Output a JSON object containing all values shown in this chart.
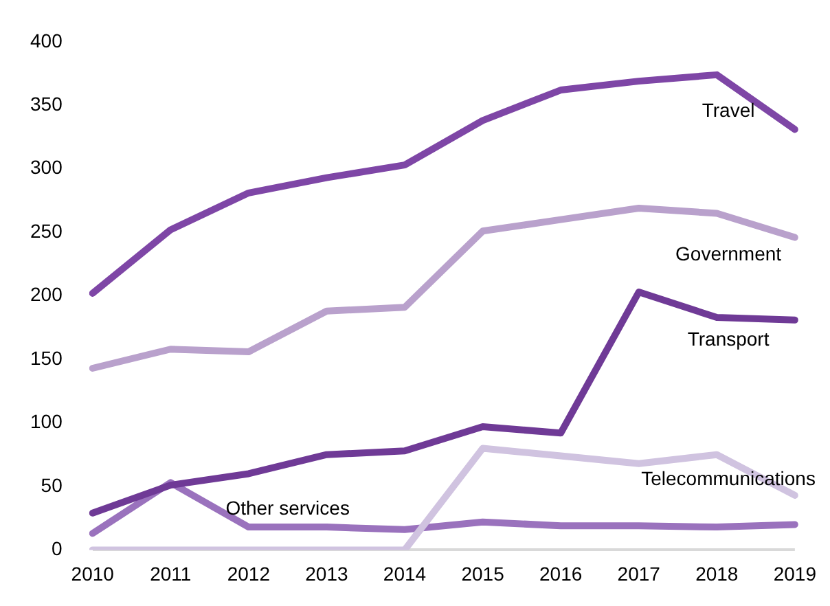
{
  "chart_data": {
    "type": "line",
    "categories": [
      "2010",
      "2011",
      "2012",
      "2013",
      "2014",
      "2015",
      "2016",
      "2017",
      "2018",
      "2019"
    ],
    "series": [
      {
        "name": "Travel",
        "color": "#7e46a6",
        "values": [
          202,
          252,
          281,
          293,
          303,
          338,
          362,
          369,
          374,
          331
        ]
      },
      {
        "name": "Government",
        "color": "#b9a1cc",
        "values": [
          143,
          158,
          156,
          188,
          191,
          251,
          260,
          269,
          265,
          246
        ]
      },
      {
        "name": "Transport",
        "color": "#6f3a96",
        "values": [
          29,
          51,
          60,
          75,
          78,
          97,
          92,
          203,
          183,
          181
        ]
      },
      {
        "name": "Telecommunications",
        "color": "#d0c3e0",
        "values": [
          0,
          0,
          0,
          0,
          0,
          80,
          74,
          68,
          75,
          43
        ]
      },
      {
        "name": "Other services",
        "color": "#9a72bd",
        "values": [
          13,
          53,
          18,
          18,
          16,
          22,
          19,
          19,
          18,
          20
        ]
      }
    ],
    "ylim": [
      0,
      400
    ],
    "yticks": [
      0,
      50,
      100,
      150,
      200,
      250,
      300,
      350,
      400
    ],
    "grid": false,
    "legend": false,
    "marker": "none",
    "line_style": "solid"
  }
}
